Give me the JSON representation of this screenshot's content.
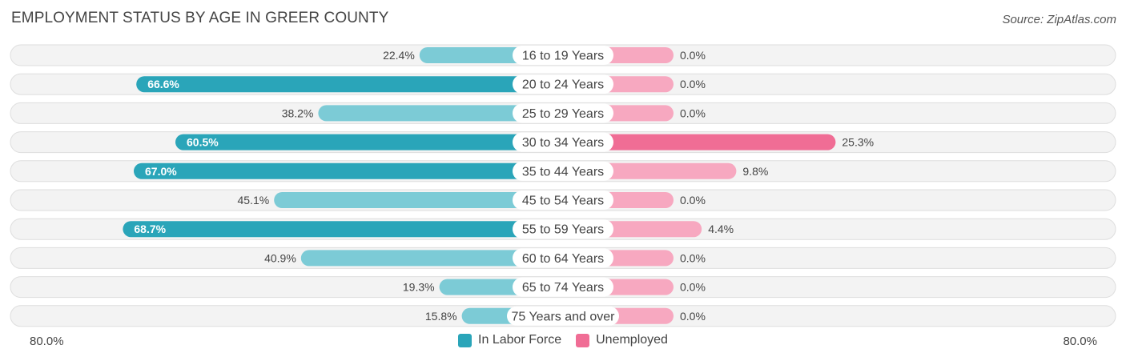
{
  "header": {
    "title": "EMPLOYMENT STATUS BY AGE IN GREER COUNTY",
    "source": "Source: ZipAtlas.com"
  },
  "axis": {
    "left_label": "80.0%",
    "right_label": "80.0%"
  },
  "legend": {
    "labor_label": "In Labor Force",
    "unemployed_label": "Unemployed"
  },
  "colors": {
    "labor_dark": "#2aa5b9",
    "labor_light": "#7ccbd6",
    "unemployed_dark": "#f06d95",
    "unemployed_light": "#f7a8c0",
    "row_bg": "#f3f3f3",
    "row_border": "#dedede"
  },
  "chart_data": {
    "type": "bar",
    "orientation": "horizontal-diverging",
    "title": "EMPLOYMENT STATUS BY AGE IN GREER COUNTY",
    "categories": [
      "16 to 19 Years",
      "20 to 24 Years",
      "25 to 29 Years",
      "30 to 34 Years",
      "35 to 44 Years",
      "45 to 54 Years",
      "55 to 59 Years",
      "60 to 64 Years",
      "65 to 74 Years",
      "75 Years and over"
    ],
    "series": [
      {
        "name": "In Labor Force",
        "values": [
          22.4,
          66.6,
          38.2,
          60.5,
          67.0,
          45.1,
          68.7,
          40.9,
          19.3,
          15.8
        ],
        "labels": [
          "22.4%",
          "66.6%",
          "38.2%",
          "60.5%",
          "67.0%",
          "45.1%",
          "68.7%",
          "40.9%",
          "19.3%",
          "15.8%"
        ]
      },
      {
        "name": "Unemployed",
        "values": [
          0.0,
          0.0,
          0.0,
          25.3,
          9.8,
          0.0,
          4.4,
          0.0,
          0.0,
          0.0
        ],
        "labels": [
          "0.0%",
          "0.0%",
          "0.0%",
          "25.3%",
          "9.8%",
          "0.0%",
          "4.4%",
          "0.0%",
          "0.0%",
          "0.0%"
        ]
      }
    ],
    "xlim": [
      -80,
      80
    ],
    "legend_position": "bottom-center"
  }
}
